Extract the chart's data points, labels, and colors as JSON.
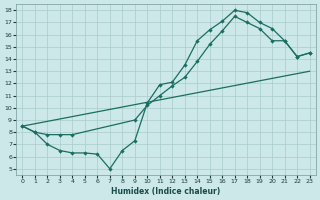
{
  "bg_color": "#cce8e8",
  "grid_color": "#aacccc",
  "line_color": "#1a6e60",
  "xlabel": "Humidex (Indice chaleur)",
  "xlim": [
    -0.5,
    23.5
  ],
  "ylim": [
    4.5,
    18.5
  ],
  "xticks": [
    0,
    1,
    2,
    3,
    4,
    5,
    6,
    7,
    8,
    9,
    10,
    11,
    12,
    13,
    14,
    15,
    16,
    17,
    18,
    19,
    20,
    21,
    22,
    23
  ],
  "yticks": [
    5,
    6,
    7,
    8,
    9,
    10,
    11,
    12,
    13,
    14,
    15,
    16,
    17,
    18
  ],
  "curve1_x": [
    0,
    1,
    2,
    3,
    4,
    5,
    6,
    7,
    8,
    9,
    10,
    11,
    12,
    13,
    14,
    15,
    16,
    17,
    18,
    19,
    20,
    21,
    22,
    23
  ],
  "curve1_y": [
    8.5,
    8.0,
    7.0,
    6.5,
    6.3,
    6.3,
    6.2,
    5.0,
    6.5,
    7.3,
    10.4,
    11.9,
    12.1,
    13.5,
    15.5,
    16.4,
    17.1,
    18.0,
    17.8,
    17.0,
    16.5,
    15.5,
    14.2,
    14.5
  ],
  "curve2_x": [
    0,
    1,
    2,
    3,
    4,
    9,
    10,
    11,
    12,
    13,
    14,
    15,
    16,
    17,
    18,
    19,
    20,
    21,
    22,
    23
  ],
  "curve2_y": [
    8.5,
    8.0,
    7.8,
    7.8,
    7.8,
    9.0,
    10.2,
    11.0,
    11.8,
    12.5,
    13.8,
    15.2,
    16.3,
    17.5,
    17.0,
    16.5,
    15.5,
    15.5,
    14.2,
    14.5
  ],
  "curve3_x": [
    0,
    23
  ],
  "curve3_y": [
    8.5,
    13.0
  ],
  "figsize": [
    3.2,
    2.0
  ],
  "dpi": 100
}
